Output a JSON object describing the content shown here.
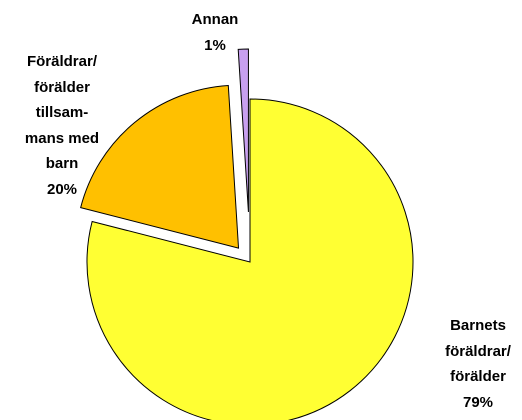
{
  "chart_data": {
    "type": "pie",
    "categories": [
      "Barnets\nföräldrar/\nförälder",
      "Föräldrar/\nförälder\ntillsam-\nmans med\nbarn",
      "Annan"
    ],
    "values": [
      79,
      20,
      1
    ],
    "value_labels": [
      "79%",
      "20%",
      "1%"
    ],
    "colors": [
      "#ffff33",
      "#ffc000",
      "#c8a0f0"
    ]
  }
}
